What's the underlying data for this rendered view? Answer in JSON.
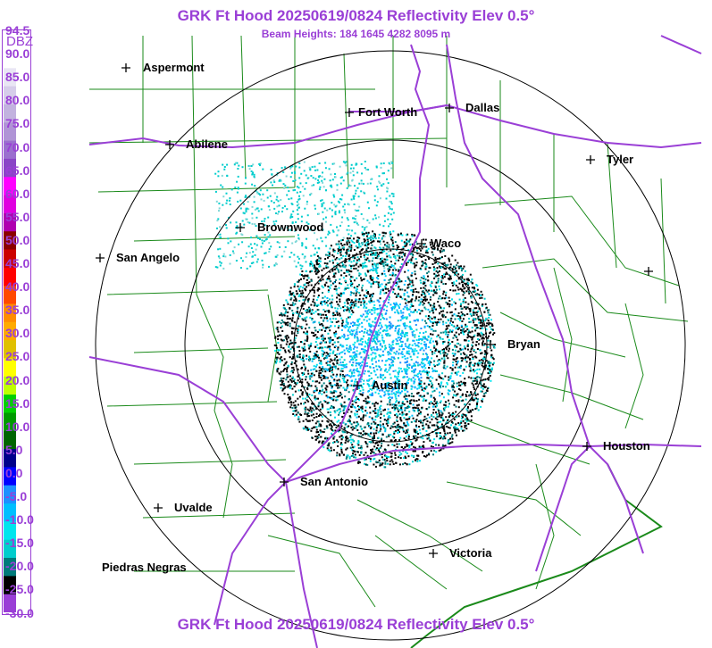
{
  "header": {
    "title": "GRK Ft Hood 20250619/0824 Reflectivity Elev 0.5°",
    "subtitle": "Beam Heights: 184 1645 4282 8095 m",
    "footer": "GRK Ft Hood 20250619/0824 Reflectivity Elev 0.5°"
  },
  "legend": {
    "unit": "DBZ",
    "labels": [
      "94.5",
      "90.0",
      "85.0",
      "80.0",
      "75.0",
      "70.0",
      "65.0",
      "60.0",
      "55.0",
      "50.0",
      "45.0",
      "40.0",
      "35.0",
      "30.0",
      "25.0",
      "20.0",
      "15.0",
      "10.0",
      "5.0",
      "0.0",
      "-5.0",
      "-10.0",
      "-15.0",
      "-20.0",
      "-25.0",
      "-30.0"
    ],
    "colors": [
      "#ffffff",
      "#e9e6f4",
      "#d6cdea",
      "#c2b2df",
      "#b094d6",
      "#9b6fcf",
      "#8a45c6",
      "#ff00ff",
      "#e000e0",
      "#b000b0",
      "#8b0000",
      "#cc0000",
      "#ff0000",
      "#ff4a00",
      "#ff8c00",
      "#ffaa00",
      "#e0c000",
      "#ffff00",
      "#bfff00",
      "#00d000",
      "#009a00",
      "#006400",
      "#00008b",
      "#0000ff",
      "#1e90ff",
      "#00bfff",
      "#00e5ee",
      "#00cdcd",
      "#007a7a",
      "#000000",
      "#9a3fd6"
    ]
  },
  "cities": [
    {
      "name": "Aspermont"
    },
    {
      "name": "Fort Worth"
    },
    {
      "name": "Dallas"
    },
    {
      "name": "Abilene"
    },
    {
      "name": "Tyler"
    },
    {
      "name": "Brownwood"
    },
    {
      "name": "Waco"
    },
    {
      "name": "San Angelo"
    },
    {
      "name": "Bryan"
    },
    {
      "name": "Austin"
    },
    {
      "name": "Houston"
    },
    {
      "name": "San Antonio"
    },
    {
      "name": "Uvalde"
    },
    {
      "name": "Victoria"
    },
    {
      "name": "Piedras Negras"
    },
    {
      "name": ""
    }
  ],
  "colors": {
    "title": "#9a3fd6",
    "highway": "#9a3fd6",
    "county": "#1a8a1a",
    "range_ring": "#000000"
  }
}
